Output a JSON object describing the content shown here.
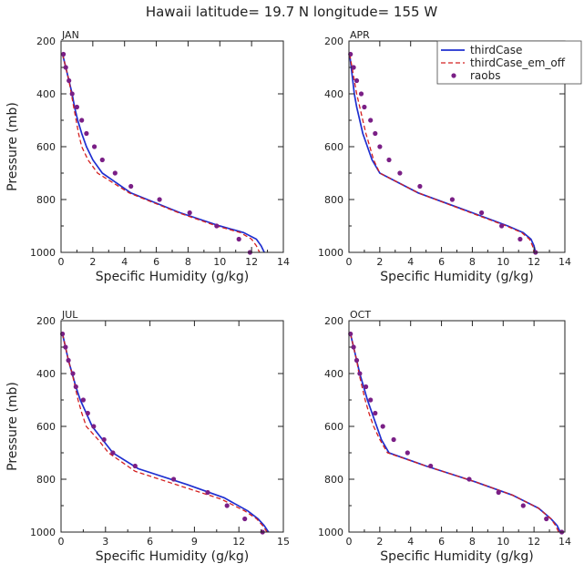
{
  "figure": {
    "title": "Hawaii  latitude= 19.7 N longitude= 155 W",
    "colors": {
      "thirdCase": "#1f2fd0",
      "thirdCase_em_off": "#d42020",
      "raobs": "#7a1f86",
      "axis": "#222222"
    }
  },
  "legend": {
    "placement": "top-right of APR panel",
    "entries": [
      "thirdCase",
      "thirdCase_em_off",
      "raobs"
    ]
  },
  "chart_data": [
    {
      "type": "line",
      "panel": "JAN",
      "xlabel": "Specific Humidity (g/kg)",
      "ylabel": "Pressure (mb)",
      "xlim": [
        0,
        14
      ],
      "ylim": [
        1000,
        200
      ],
      "y_inverted": true,
      "xticks": [
        0,
        2,
        4,
        6,
        8,
        10,
        12,
        14
      ],
      "yticks": [
        200,
        400,
        600,
        800,
        1000
      ],
      "grid": false,
      "series": [
        {
          "name": "thirdCase",
          "style": "solid",
          "points": [
            [
              0.1,
              250
            ],
            [
              0.3,
              300
            ],
            [
              0.5,
              350
            ],
            [
              0.7,
              400
            ],
            [
              0.85,
              450
            ],
            [
              1.05,
              500
            ],
            [
              1.3,
              550
            ],
            [
              1.6,
              600
            ],
            [
              2.0,
              650
            ],
            [
              2.6,
              700
            ],
            [
              4.4,
              775
            ],
            [
              7.5,
              850
            ],
            [
              10.0,
              900
            ],
            [
              11.5,
              925
            ],
            [
              12.3,
              950
            ],
            [
              12.6,
              975
            ],
            [
              12.8,
              1000
            ]
          ]
        },
        {
          "name": "thirdCase_em_off",
          "style": "dashed",
          "points": [
            [
              0.1,
              250
            ],
            [
              0.3,
              300
            ],
            [
              0.5,
              350
            ],
            [
              0.65,
              400
            ],
            [
              0.8,
              450
            ],
            [
              0.95,
              500
            ],
            [
              1.1,
              550
            ],
            [
              1.3,
              600
            ],
            [
              1.7,
              650
            ],
            [
              2.3,
              700
            ],
            [
              4.3,
              775
            ],
            [
              7.4,
              850
            ],
            [
              9.8,
              900
            ],
            [
              11.3,
              925
            ],
            [
              12.0,
              950
            ],
            [
              12.3,
              975
            ],
            [
              12.5,
              1000
            ]
          ]
        }
      ],
      "raobs": [
        [
          0.15,
          250
        ],
        [
          0.3,
          300
        ],
        [
          0.5,
          350
        ],
        [
          0.7,
          400
        ],
        [
          1.0,
          450
        ],
        [
          1.3,
          500
        ],
        [
          1.6,
          550
        ],
        [
          2.1,
          600
        ],
        [
          2.6,
          650
        ],
        [
          3.4,
          700
        ],
        [
          4.4,
          750
        ],
        [
          6.2,
          800
        ],
        [
          8.1,
          850
        ],
        [
          9.8,
          900
        ],
        [
          11.2,
          950
        ],
        [
          11.9,
          1000
        ]
      ]
    },
    {
      "type": "line",
      "panel": "APR",
      "xlabel": "Specific Humidity (g/kg)",
      "ylabel": "",
      "xlim": [
        0,
        14
      ],
      "ylim": [
        1000,
        200
      ],
      "y_inverted": true,
      "xticks": [
        0,
        2,
        4,
        6,
        8,
        10,
        12,
        14
      ],
      "yticks": [
        200,
        400,
        600,
        800,
        1000
      ],
      "grid": false,
      "series": [
        {
          "name": "thirdCase",
          "style": "solid",
          "points": [
            [
              0.05,
              250
            ],
            [
              0.15,
              300
            ],
            [
              0.25,
              350
            ],
            [
              0.35,
              400
            ],
            [
              0.5,
              450
            ],
            [
              0.7,
              500
            ],
            [
              0.9,
              550
            ],
            [
              1.2,
              600
            ],
            [
              1.5,
              650
            ],
            [
              2.0,
              700
            ],
            [
              4.5,
              775
            ],
            [
              8.0,
              850
            ],
            [
              10.3,
              900
            ],
            [
              11.3,
              925
            ],
            [
              11.8,
              950
            ],
            [
              12.0,
              975
            ],
            [
              12.1,
              1000
            ]
          ]
        },
        {
          "name": "thirdCase_em_off",
          "style": "dashed",
          "points": [
            [
              0.05,
              250
            ],
            [
              0.2,
              300
            ],
            [
              0.35,
              350
            ],
            [
              0.5,
              400
            ],
            [
              0.7,
              450
            ],
            [
              0.9,
              500
            ],
            [
              1.1,
              550
            ],
            [
              1.35,
              600
            ],
            [
              1.6,
              650
            ],
            [
              2.0,
              700
            ],
            [
              4.5,
              775
            ],
            [
              7.9,
              850
            ],
            [
              10.2,
              900
            ],
            [
              11.2,
              925
            ],
            [
              11.7,
              950
            ],
            [
              11.9,
              975
            ],
            [
              12.0,
              1000
            ]
          ]
        }
      ],
      "raobs": [
        [
          0.1,
          250
        ],
        [
          0.3,
          300
        ],
        [
          0.5,
          350
        ],
        [
          0.8,
          400
        ],
        [
          1.0,
          450
        ],
        [
          1.4,
          500
        ],
        [
          1.7,
          550
        ],
        [
          2.0,
          600
        ],
        [
          2.6,
          650
        ],
        [
          3.3,
          700
        ],
        [
          4.6,
          750
        ],
        [
          6.7,
          800
        ],
        [
          8.6,
          850
        ],
        [
          9.9,
          900
        ],
        [
          11.1,
          950
        ],
        [
          12.1,
          1000
        ]
      ]
    },
    {
      "type": "line",
      "panel": "JUL",
      "xlabel": "Specific Humidity (g/kg)",
      "ylabel": "Pressure (mb)",
      "xlim": [
        0,
        15
      ],
      "ylim": [
        1000,
        200
      ],
      "y_inverted": true,
      "xticks": [
        0,
        3,
        6,
        9,
        12,
        15
      ],
      "yticks": [
        200,
        400,
        600,
        800,
        1000
      ],
      "grid": false,
      "series": [
        {
          "name": "thirdCase",
          "style": "solid",
          "points": [
            [
              0.1,
              250
            ],
            [
              0.3,
              300
            ],
            [
              0.5,
              350
            ],
            [
              0.75,
              400
            ],
            [
              1.0,
              450
            ],
            [
              1.3,
              500
            ],
            [
              1.7,
              550
            ],
            [
              2.1,
              600
            ],
            [
              2.8,
              650
            ],
            [
              3.5,
              700
            ],
            [
              5.2,
              760
            ],
            [
              8.5,
              820
            ],
            [
              11.0,
              870
            ],
            [
              12.6,
              920
            ],
            [
              13.3,
              950
            ],
            [
              13.7,
              975
            ],
            [
              14.0,
              1000
            ]
          ]
        },
        {
          "name": "thirdCase_em_off",
          "style": "dashed",
          "points": [
            [
              0.1,
              250
            ],
            [
              0.3,
              300
            ],
            [
              0.5,
              350
            ],
            [
              0.75,
              400
            ],
            [
              0.95,
              450
            ],
            [
              1.15,
              500
            ],
            [
              1.4,
              550
            ],
            [
              1.7,
              600
            ],
            [
              2.5,
              650
            ],
            [
              3.2,
              700
            ],
            [
              5.0,
              770
            ],
            [
              8.3,
              830
            ],
            [
              10.8,
              875
            ],
            [
              12.4,
              920
            ],
            [
              13.2,
              950
            ],
            [
              13.6,
              975
            ],
            [
              13.9,
              1000
            ]
          ]
        }
      ],
      "raobs": [
        [
          0.1,
          250
        ],
        [
          0.3,
          300
        ],
        [
          0.5,
          350
        ],
        [
          0.8,
          400
        ],
        [
          1.0,
          450
        ],
        [
          1.5,
          500
        ],
        [
          1.8,
          550
        ],
        [
          2.2,
          600
        ],
        [
          2.9,
          650
        ],
        [
          3.5,
          700
        ],
        [
          5.0,
          750
        ],
        [
          7.6,
          800
        ],
        [
          9.9,
          850
        ],
        [
          11.2,
          900
        ],
        [
          12.4,
          950
        ],
        [
          13.6,
          1000
        ]
      ]
    },
    {
      "type": "line",
      "panel": "OCT",
      "xlabel": "Specific Humidity (g/kg)",
      "ylabel": "",
      "xlim": [
        0,
        14
      ],
      "ylim": [
        1000,
        200
      ],
      "y_inverted": true,
      "xticks": [
        0,
        2,
        4,
        6,
        8,
        10,
        12,
        14
      ],
      "yticks": [
        200,
        400,
        600,
        800,
        1000
      ],
      "grid": false,
      "series": [
        {
          "name": "thirdCase",
          "style": "solid",
          "points": [
            [
              0.1,
              250
            ],
            [
              0.3,
              300
            ],
            [
              0.5,
              350
            ],
            [
              0.7,
              400
            ],
            [
              0.95,
              450
            ],
            [
              1.2,
              500
            ],
            [
              1.5,
              550
            ],
            [
              1.8,
              600
            ],
            [
              2.1,
              650
            ],
            [
              2.6,
              700
            ],
            [
              5.0,
              750
            ],
            [
              8.2,
              810
            ],
            [
              10.6,
              860
            ],
            [
              12.3,
              910
            ],
            [
              13.1,
              950
            ],
            [
              13.5,
              975
            ],
            [
              13.7,
              1000
            ]
          ]
        },
        {
          "name": "thirdCase_em_off",
          "style": "dashed",
          "points": [
            [
              0.1,
              250
            ],
            [
              0.3,
              300
            ],
            [
              0.5,
              350
            ],
            [
              0.65,
              400
            ],
            [
              0.85,
              450
            ],
            [
              1.05,
              500
            ],
            [
              1.3,
              550
            ],
            [
              1.6,
              600
            ],
            [
              2.0,
              650
            ],
            [
              2.5,
              700
            ],
            [
              5.0,
              750
            ],
            [
              8.2,
              810
            ],
            [
              10.6,
              860
            ],
            [
              12.3,
              910
            ],
            [
              13.1,
              950
            ],
            [
              13.4,
              975
            ],
            [
              13.6,
              1000
            ]
          ]
        }
      ],
      "raobs": [
        [
          0.1,
          250
        ],
        [
          0.3,
          300
        ],
        [
          0.5,
          350
        ],
        [
          0.7,
          400
        ],
        [
          1.1,
          450
        ],
        [
          1.4,
          500
        ],
        [
          1.7,
          550
        ],
        [
          2.2,
          600
        ],
        [
          2.9,
          650
        ],
        [
          3.8,
          700
        ],
        [
          5.3,
          750
        ],
        [
          7.8,
          800
        ],
        [
          9.7,
          850
        ],
        [
          11.3,
          900
        ],
        [
          12.8,
          950
        ],
        [
          13.8,
          1000
        ]
      ]
    }
  ]
}
